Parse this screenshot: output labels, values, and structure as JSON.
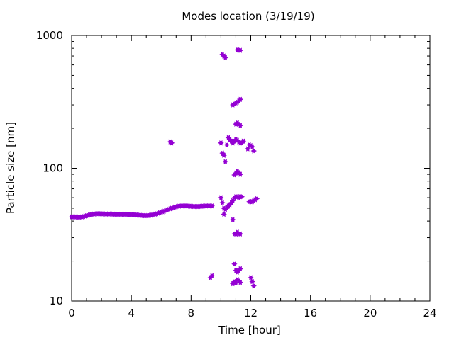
{
  "chart_data": {
    "type": "scatter",
    "title": "Modes location (3/19/19)",
    "xlabel": "Time [hour]",
    "ylabel": "Particle size [nm]",
    "xlim": [
      0,
      24
    ],
    "ylim": [
      10,
      1000
    ],
    "yscale": "log",
    "xticks": [
      0,
      4,
      8,
      12,
      16,
      20,
      24
    ],
    "yticks": [
      10,
      100,
      1000
    ],
    "grid": false,
    "marker_color": "#9400d3",
    "x": [
      0.0,
      0.1,
      0.2,
      0.3,
      0.4,
      0.5,
      0.6,
      0.7,
      0.8,
      0.9,
      1.0,
      1.1,
      1.2,
      1.3,
      1.4,
      1.5,
      1.6,
      1.7,
      1.8,
      1.9,
      2.0,
      2.1,
      2.2,
      2.3,
      2.4,
      2.5,
      2.6,
      2.7,
      2.8,
      2.9,
      3.0,
      3.1,
      3.2,
      3.3,
      3.4,
      3.5,
      3.6,
      3.7,
      3.8,
      3.9,
      4.0,
      4.1,
      4.2,
      4.3,
      4.4,
      4.5,
      4.6,
      4.7,
      4.8,
      4.9,
      5.0,
      5.1,
      5.2,
      5.3,
      5.4,
      5.5,
      5.6,
      5.7,
      5.8,
      5.9,
      6.0,
      6.1,
      6.2,
      6.3,
      6.4,
      6.5,
      6.6,
      6.7,
      6.8,
      6.9,
      7.0,
      7.1,
      7.2,
      7.3,
      7.4,
      7.5,
      7.6,
      7.7,
      7.8,
      7.9,
      8.0,
      8.1,
      8.2,
      8.3,
      8.4,
      8.5,
      8.6,
      8.7,
      8.8,
      8.9,
      9.0,
      9.1,
      9.2,
      9.3,
      9.4,
      6.6,
      6.7,
      9.3,
      9.4,
      10.0,
      10.1,
      10.2,
      10.3,
      10.4,
      10.5,
      10.6,
      10.7,
      10.8,
      10.9,
      11.0,
      11.1,
      11.2,
      11.3,
      11.4,
      11.5,
      10.0,
      10.1,
      10.2,
      10.3,
      10.4,
      10.5,
      10.6,
      10.7,
      10.8,
      10.9,
      11.0,
      11.1,
      11.2,
      11.3,
      11.4,
      11.9,
      12.0,
      12.1,
      12.2,
      10.2,
      10.8,
      10.9,
      11.0,
      11.1,
      11.2,
      11.3,
      10.9,
      11.0,
      11.1,
      11.2,
      11.3,
      11.0,
      11.1,
      11.2,
      11.3,
      10.1,
      10.2,
      10.3,
      10.8,
      10.9,
      11.0,
      11.1,
      11.2,
      11.3,
      11.8,
      11.9,
      12.0,
      12.1,
      12.2,
      12.3,
      12.4,
      10.9,
      11.0,
      11.1,
      11.2,
      11.3,
      11.1,
      11.2,
      11.3,
      10.8,
      10.9,
      11.0,
      11.1,
      11.2,
      11.3,
      12.0,
      12.1,
      12.2
    ],
    "y": [
      43,
      43,
      43,
      43,
      42.8,
      42.8,
      42.9,
      43,
      43.3,
      43.6,
      43.9,
      44.2,
      44.5,
      44.8,
      45,
      45.2,
      45.3,
      45.4,
      45.4,
      45.4,
      45.3,
      45.3,
      45.2,
      45.2,
      45.2,
      45.2,
      45.2,
      45.2,
      45.1,
      45,
      45,
      45,
      45,
      45,
      45,
      45,
      45,
      45,
      44.9,
      44.8,
      44.8,
      44.7,
      44.6,
      44.5,
      44.4,
      44.3,
      44.2,
      44.1,
      44,
      43.9,
      43.9,
      44,
      44.1,
      44.3,
      44.5,
      44.8,
      45.1,
      45.4,
      45.8,
      46.2,
      46.6,
      47,
      47.5,
      48,
      48.5,
      49,
      49.5,
      50,
      50.5,
      51,
      51.3,
      51.6,
      51.8,
      52,
      52,
      52,
      52,
      52,
      51.9,
      51.8,
      51.7,
      51.6,
      51.5,
      51.5,
      51.5,
      51.5,
      51.6,
      51.7,
      51.8,
      51.9,
      52,
      52,
      52,
      52,
      52,
      158,
      155,
      15,
      15.5,
      155,
      130,
      125,
      112,
      150,
      170,
      165,
      160,
      155,
      160,
      165,
      162,
      158,
      155,
      155,
      160,
      60,
      55,
      50,
      49,
      50,
      52,
      53,
      55,
      57,
      60,
      61,
      61,
      60,
      61,
      61,
      56,
      56,
      56,
      57,
      45,
      41,
      32,
      32,
      33,
      32,
      32,
      89,
      92,
      95,
      93,
      90,
      215,
      220,
      215,
      210,
      720,
      700,
      680,
      300,
      305,
      310,
      315,
      320,
      330,
      140,
      150,
      148,
      145,
      135,
      58,
      59,
      19,
      17,
      16.5,
      17,
      17.5,
      778,
      775,
      772,
      13.5,
      14,
      13.7,
      14.5,
      14.2,
      13.8,
      15,
      14,
      13
    ]
  }
}
